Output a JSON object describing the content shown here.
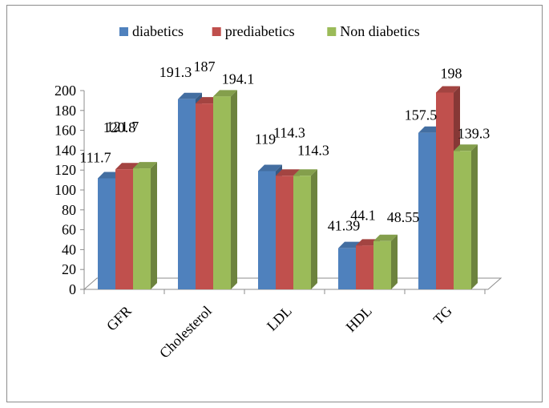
{
  "chart_data": {
    "type": "bar",
    "categories": [
      "GFR",
      "Cholesterol",
      "LDL",
      "HDL",
      "TG"
    ],
    "series": [
      {
        "name": "diabetics",
        "color": "#4f81bd",
        "values": [
          111.7,
          191.3,
          119,
          41.39,
          157.5
        ]
      },
      {
        "name": "prediabetics",
        "color": "#c0504d",
        "values": [
          120.8,
          187,
          114.3,
          44.1,
          198
        ]
      },
      {
        "name": "Non diabetics",
        "color": "#9bbb59",
        "values": [
          121.7,
          194.1,
          114.3,
          48.55,
          139.3
        ]
      }
    ],
    "data_labels": [
      [
        "111.7",
        "191.3",
        "119",
        "41.39",
        "157.5"
      ],
      [
        "120.8",
        "187",
        "114.3",
        "44.1",
        "198"
      ],
      [
        "121.7",
        "194.1",
        "114.3",
        "48.55",
        "139.3"
      ]
    ],
    "y_ticks": [
      "0",
      "20",
      "40",
      "60",
      "80",
      "100",
      "120",
      "140",
      "160",
      "180",
      "200"
    ],
    "ylim": [
      0,
      200
    ],
    "grid": false,
    "legend": "top",
    "style": "3d-clustered-column"
  }
}
